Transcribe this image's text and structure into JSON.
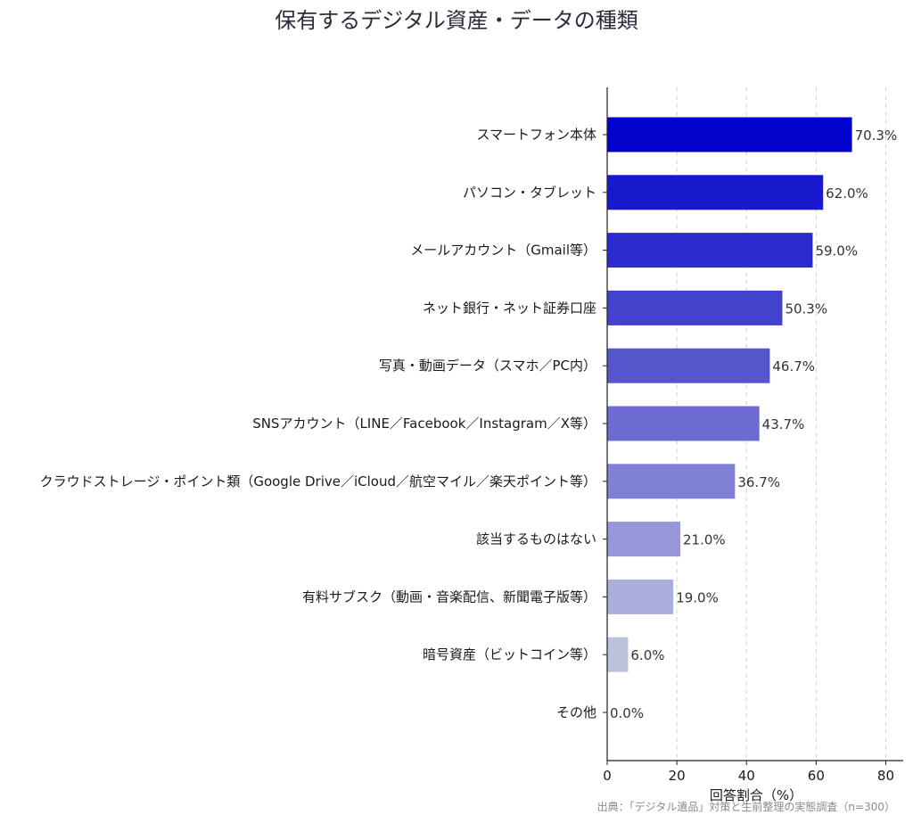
{
  "chart_data": {
    "type": "bar",
    "orientation": "horizontal",
    "title": "保有するデジタル資産・データの種類",
    "xlabel": "回答割合（%）",
    "ylabel": "",
    "xlim": [
      0,
      85
    ],
    "xticks": [
      0,
      20,
      40,
      60,
      80
    ],
    "grid": "x-dashed",
    "categories": [
      "スマートフォン本体",
      "パソコン・タブレット",
      "メールアカウント（Gmail等）",
      "ネット銀行・ネット証券口座",
      "写真・動画データ（スマホ／PC内）",
      "SNSアカウント（LINE／Facebook／Instagram／X等）",
      "クラウドストレージ・ポイント類（Google Drive／iCloud／航空マイル／楽天ポイント等）",
      "該当するものはない",
      "有料サブスク（動画・音楽配信、新聞電子版等）",
      "暗号資産（ビットコイン等）",
      "その他"
    ],
    "values": [
      70.3,
      62.0,
      59.0,
      50.3,
      46.7,
      43.7,
      36.7,
      21.0,
      19.0,
      6.0,
      0.0
    ],
    "value_labels": [
      "70.3%",
      "62.0%",
      "59.0%",
      "50.3%",
      "46.7%",
      "43.7%",
      "36.7%",
      "21.0%",
      "19.0%",
      "6.0%",
      "0.0%"
    ],
    "colors": [
      "#0202cc",
      "#1818cc",
      "#2b2bcf",
      "#4242cc",
      "#5555cc",
      "#6b6bd2",
      "#8080d6",
      "#9696d8",
      "#aaaedc",
      "#bcc2dc",
      "#c8ccdc"
    ],
    "source": "出典：「デジタル遺品」対策と生前整理の実態調査（n=300）"
  }
}
